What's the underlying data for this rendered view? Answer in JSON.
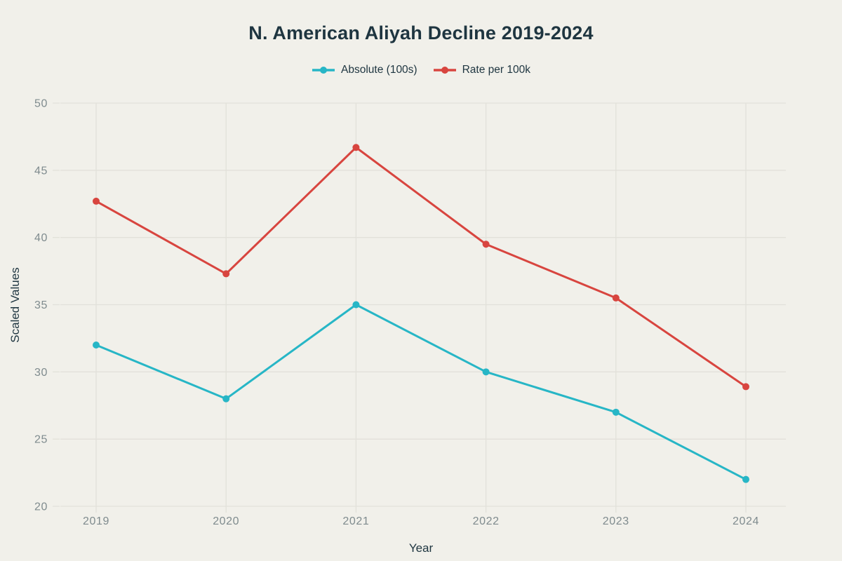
{
  "title": "N. American Aliyah Decline 2019-2024",
  "colors": {
    "background": "#f1f0ea",
    "grid": "#e2e1da",
    "tick_text": "#7f8b8e",
    "heading_text": "#1e3540",
    "series_absolute": "#27b6c6",
    "series_rate": "#d8453f"
  },
  "chart_data": {
    "type": "line",
    "title": "N. American Aliyah Decline 2019-2024",
    "xlabel": "Year",
    "ylabel": "Scaled Values",
    "categories": [
      "2019",
      "2020",
      "2021",
      "2022",
      "2023",
      "2024"
    ],
    "series": [
      {
        "name": "Absolute (100s)",
        "color": "#27b6c6",
        "values": [
          32,
          28,
          35,
          30,
          27,
          22
        ]
      },
      {
        "name": "Rate per 100k",
        "color": "#d8453f",
        "values": [
          42.7,
          37.3,
          46.7,
          39.5,
          35.5,
          28.9
        ]
      }
    ],
    "ylim": [
      20,
      50
    ],
    "yticks": [
      20,
      25,
      30,
      35,
      40,
      45,
      50
    ],
    "grid": true,
    "legend_position": "top",
    "marker": "circle"
  }
}
